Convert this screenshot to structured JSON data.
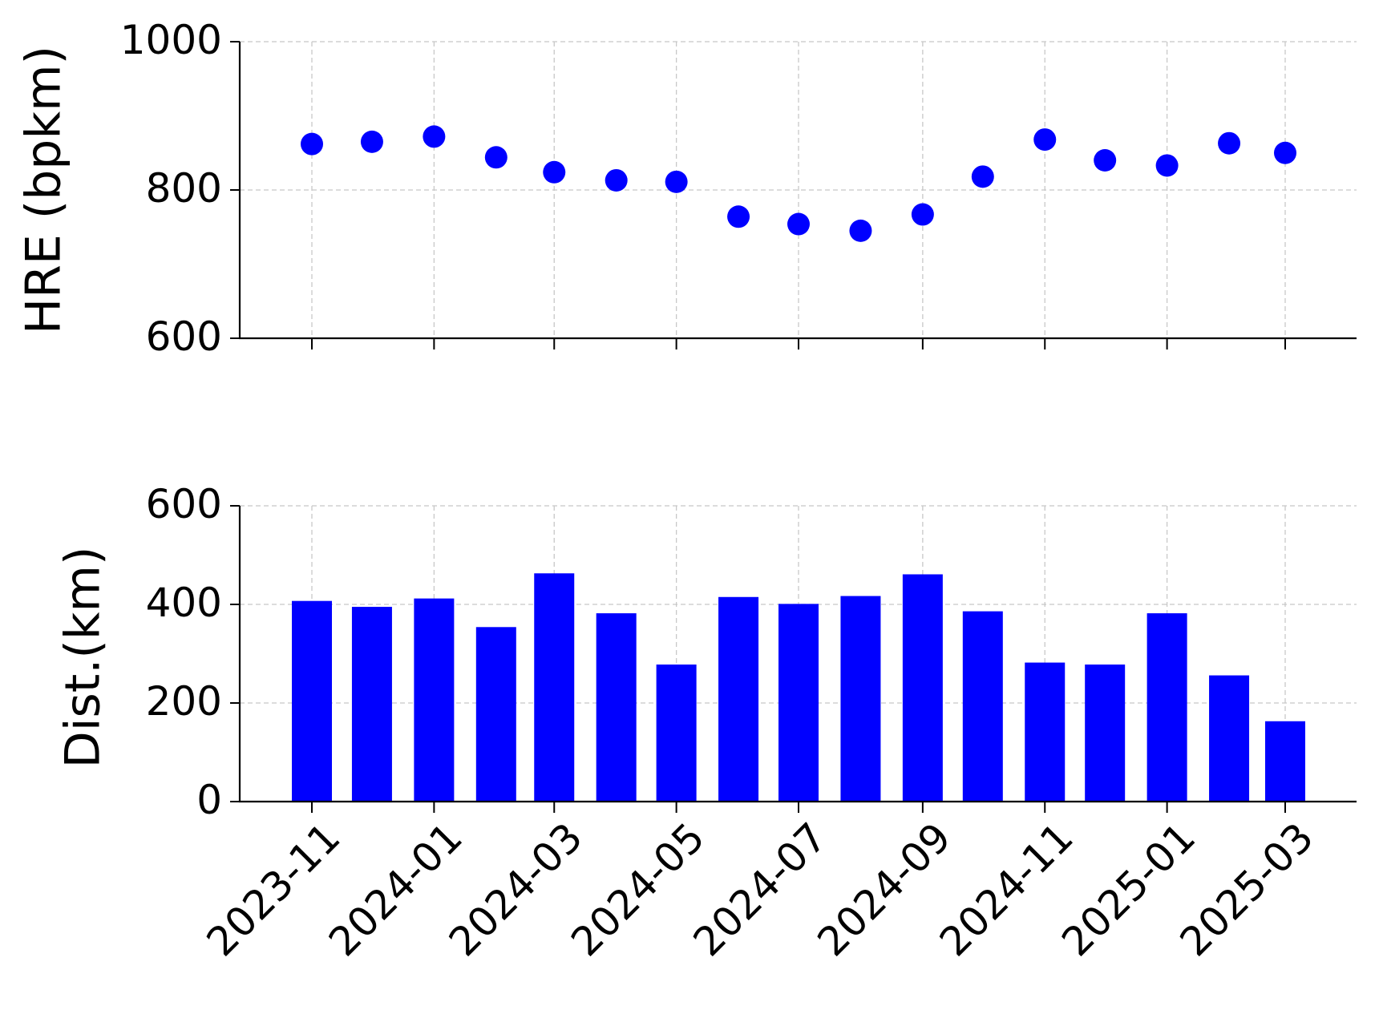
{
  "chart_data": [
    {
      "type": "scatter",
      "ylabel": "HRE (bpkm)",
      "ylim": [
        600,
        1000
      ],
      "yticks": [
        "600",
        "800",
        "1000"
      ],
      "grid": true,
      "x": [
        "2023-11-01",
        "2023-12-01",
        "2024-01-01",
        "2024-02-01",
        "2024-03-01",
        "2024-04-01",
        "2024-05-01",
        "2024-06-01",
        "2024-07-01",
        "2024-08-01",
        "2024-09-01",
        "2024-10-01",
        "2024-11-01",
        "2024-12-01",
        "2025-01-01",
        "2025-02-01",
        "2025-03-01"
      ],
      "values": [
        862,
        865,
        872,
        844,
        824,
        813,
        811,
        764,
        754,
        745,
        767,
        818,
        868,
        840,
        833,
        863,
        850
      ],
      "color": "#0000ff"
    },
    {
      "type": "bar",
      "ylabel": "Dist.(km)",
      "ylim": [
        0,
        600
      ],
      "yticks": [
        "0",
        "200",
        "400",
        "600"
      ],
      "grid": true,
      "x": [
        "2023-11-01",
        "2023-12-01",
        "2024-01-01",
        "2024-02-01",
        "2024-03-01",
        "2024-04-01",
        "2024-05-01",
        "2024-06-01",
        "2024-07-01",
        "2024-08-01",
        "2024-09-01",
        "2024-10-01",
        "2024-11-01",
        "2024-12-01",
        "2025-01-01",
        "2025-02-01",
        "2025-03-01"
      ],
      "values": [
        407,
        395,
        412,
        354,
        463,
        382,
        278,
        415,
        401,
        417,
        461,
        386,
        282,
        278,
        382,
        256,
        163
      ],
      "color": "#0000ff",
      "xticks": [
        "2023-11",
        "2024-01",
        "2024-03",
        "2024-05",
        "2024-07",
        "2024-09",
        "2024-11",
        "2025-01",
        "2025-03"
      ]
    }
  ]
}
